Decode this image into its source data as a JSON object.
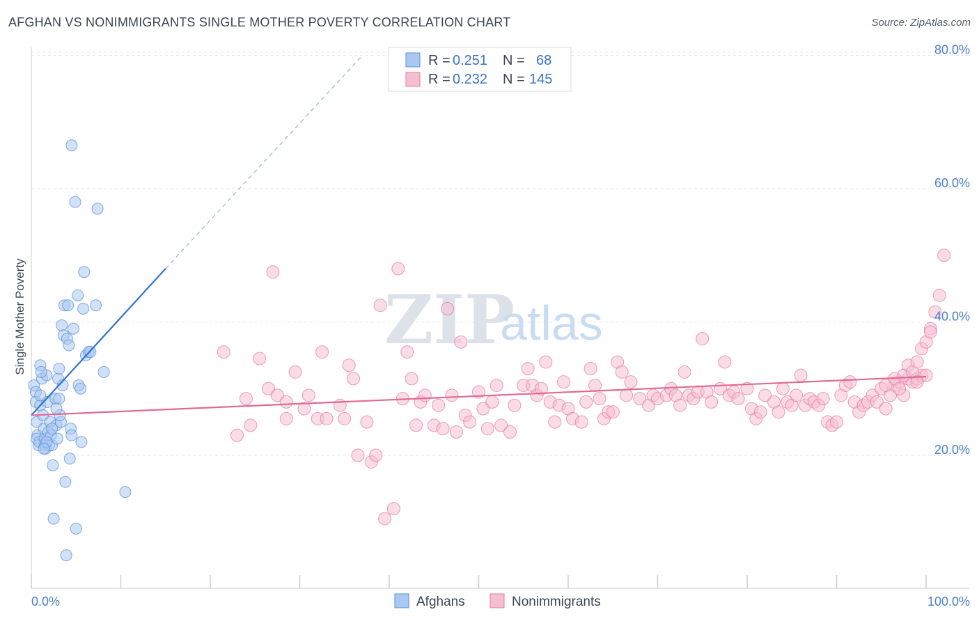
{
  "header": {
    "title": "AFGHAN VS NONIMMIGRANTS SINGLE MOTHER POVERTY CORRELATION CHART",
    "source": "Source: ZipAtlas.com"
  },
  "watermark": {
    "zip": "ZIP",
    "atlas": "atlas"
  },
  "stats_box": {
    "rows": [
      {
        "r_label": "R =",
        "r_value": "0.251",
        "n_label": "N =",
        "n_value": "68",
        "color": "#a9c9f2",
        "stroke": "#5b8fd6"
      },
      {
        "r_label": "R =",
        "r_value": "0.232",
        "n_label": "N =",
        "n_value": "145",
        "color": "#f6bfd1",
        "stroke": "#e57ba0"
      }
    ]
  },
  "legend": {
    "items": [
      {
        "label": "Afghans",
        "color": "#a9c9f2",
        "stroke": "#5b8fd6"
      },
      {
        "label": "Nonimmigrants",
        "color": "#f6bfd1",
        "stroke": "#e57ba0"
      }
    ]
  },
  "chart_data": {
    "type": "scatter",
    "title": "AFGHAN VS NONIMMIGRANTS SINGLE MOTHER POVERTY CORRELATION CHART",
    "xlabel": "",
    "ylabel": "Single Mother Poverty",
    "xlim": [
      0,
      100
    ],
    "ylim": [
      0,
      85
    ],
    "x_tick_labels": [
      "0.0%",
      "100.0%"
    ],
    "y_ticks": [
      20,
      40,
      60,
      80
    ],
    "y_tick_labels": [
      "20.0%",
      "40.0%",
      "60.0%",
      "80.0%"
    ],
    "grid": true,
    "legend_position": "bottom-center",
    "series": [
      {
        "name": "Afghans",
        "color": "#5b8fd6",
        "fill": "#a9c9f2",
        "trend": {
          "x": [
            0,
            15
          ],
          "y": [
            26.0,
            48.0
          ],
          "dashed_extension_to": [
            37,
            80
          ]
        },
        "points": [
          [
            0.3,
            30.5
          ],
          [
            0.5,
            29.5
          ],
          [
            0.5,
            28
          ],
          [
            0.6,
            25
          ],
          [
            0.7,
            23
          ],
          [
            0.6,
            22.5
          ],
          [
            0.8,
            21.5
          ],
          [
            0.9,
            22
          ],
          [
            1,
            27.5
          ],
          [
            1,
            33.5
          ],
          [
            1.2,
            31.5
          ],
          [
            1.3,
            26
          ],
          [
            1.4,
            24
          ],
          [
            1.5,
            22.5
          ],
          [
            1.5,
            21.5
          ],
          [
            1.6,
            21
          ],
          [
            1.7,
            32
          ],
          [
            1.8,
            28
          ],
          [
            1.9,
            23.5
          ],
          [
            2,
            21.5
          ],
          [
            2.1,
            25
          ],
          [
            2.2,
            23
          ],
          [
            2.3,
            21.5
          ],
          [
            2.4,
            18.5
          ],
          [
            2.5,
            10.5
          ],
          [
            2.7,
            28.5
          ],
          [
            2.8,
            24.5
          ],
          [
            2.9,
            22.5
          ],
          [
            3,
            31.5
          ],
          [
            3.1,
            33
          ],
          [
            3.1,
            28.5
          ],
          [
            3.3,
            25
          ],
          [
            3.4,
            39.5
          ],
          [
            3.5,
            30.5
          ],
          [
            3.6,
            38
          ],
          [
            3.7,
            42.5
          ],
          [
            3.8,
            16
          ],
          [
            3.9,
            5
          ],
          [
            4,
            37.5
          ],
          [
            4.1,
            42.5
          ],
          [
            4.2,
            36.5
          ],
          [
            4.3,
            19.5
          ],
          [
            4.4,
            24
          ],
          [
            4.5,
            23
          ],
          [
            4.5,
            66.5
          ],
          [
            4.7,
            39
          ],
          [
            4.9,
            58
          ],
          [
            5,
            9
          ],
          [
            5.2,
            44
          ],
          [
            5.3,
            30.5
          ],
          [
            5.5,
            30
          ],
          [
            5.6,
            22
          ],
          [
            5.8,
            42
          ],
          [
            5.9,
            47.5
          ],
          [
            6.1,
            35
          ],
          [
            6.4,
            35.5
          ],
          [
            6.6,
            35.5
          ],
          [
            7.2,
            42.5
          ],
          [
            7.4,
            57
          ],
          [
            8.1,
            32.5
          ],
          [
            10.5,
            14.5
          ],
          [
            1,
            29
          ],
          [
            1.7,
            22
          ],
          [
            2.3,
            24
          ],
          [
            3.2,
            26
          ],
          [
            1.4,
            21
          ],
          [
            2.8,
            27
          ],
          [
            1.1,
            32.5
          ]
        ]
      },
      {
        "name": "Nonimmigrants",
        "color": "#e57ba0",
        "fill": "#f6bfd1",
        "trend": {
          "x": [
            0,
            100
          ],
          "y": [
            26.0,
            31.8
          ]
        },
        "points": [
          [
            21.5,
            35.5
          ],
          [
            23,
            23
          ],
          [
            24,
            28.5
          ],
          [
            24.5,
            24.5
          ],
          [
            25.5,
            34.5
          ],
          [
            26.5,
            30
          ],
          [
            27,
            47.5
          ],
          [
            27.5,
            29
          ],
          [
            28.5,
            28
          ],
          [
            28.5,
            25.5
          ],
          [
            29.5,
            32.5
          ],
          [
            30.5,
            27
          ],
          [
            31,
            29
          ],
          [
            32,
            25.5
          ],
          [
            32.5,
            35.5
          ],
          [
            33,
            25.5
          ],
          [
            34.5,
            27.5
          ],
          [
            35,
            25.5
          ],
          [
            35.5,
            33.5
          ],
          [
            36,
            31.5
          ],
          [
            36.5,
            20
          ],
          [
            37.5,
            25
          ],
          [
            38,
            19
          ],
          [
            38.5,
            20
          ],
          [
            39,
            42.5
          ],
          [
            39.5,
            10.5
          ],
          [
            40.5,
            12
          ],
          [
            41,
            48
          ],
          [
            41.5,
            28.5
          ],
          [
            42,
            35.5
          ],
          [
            42.5,
            31.5
          ],
          [
            43,
            24.5
          ],
          [
            43.5,
            28
          ],
          [
            44,
            29
          ],
          [
            45,
            24.5
          ],
          [
            45.5,
            27.5
          ],
          [
            46,
            24
          ],
          [
            46.5,
            42
          ],
          [
            47,
            29
          ],
          [
            47.5,
            23.5
          ],
          [
            48,
            37
          ],
          [
            48.5,
            26
          ],
          [
            49,
            25
          ],
          [
            50,
            29.5
          ],
          [
            50.5,
            27
          ],
          [
            51,
            24
          ],
          [
            51.5,
            28
          ],
          [
            52,
            30.5
          ],
          [
            52.5,
            24.5
          ],
          [
            53.5,
            23.5
          ],
          [
            54,
            27.5
          ],
          [
            55,
            30.5
          ],
          [
            55.5,
            33
          ],
          [
            56,
            30.5
          ],
          [
            56.5,
            29
          ],
          [
            57,
            30
          ],
          [
            57.5,
            34
          ],
          [
            58,
            28
          ],
          [
            58.5,
            25
          ],
          [
            59,
            27.5
          ],
          [
            59.5,
            31
          ],
          [
            60,
            27
          ],
          [
            60.5,
            25.5
          ],
          [
            61.5,
            25
          ],
          [
            62,
            28
          ],
          [
            62.5,
            33
          ],
          [
            63,
            30.5
          ],
          [
            63.5,
            28.5
          ],
          [
            64,
            25.5
          ],
          [
            64.5,
            26.5
          ],
          [
            65,
            26.5
          ],
          [
            65.5,
            34
          ],
          [
            66,
            32.5
          ],
          [
            66.5,
            29
          ],
          [
            67,
            31
          ],
          [
            68,
            28.5
          ],
          [
            69,
            27.5
          ],
          [
            69.5,
            29
          ],
          [
            70,
            28.5
          ],
          [
            71,
            29
          ],
          [
            71.5,
            30
          ],
          [
            72,
            29
          ],
          [
            72.5,
            27.5
          ],
          [
            73,
            32.5
          ],
          [
            73.5,
            29
          ],
          [
            74,
            28.5
          ],
          [
            74.5,
            29.5
          ],
          [
            75,
            37.5
          ],
          [
            75.5,
            29.5
          ],
          [
            76,
            28
          ],
          [
            77,
            30
          ],
          [
            77.5,
            34
          ],
          [
            78,
            29
          ],
          [
            78.5,
            29.5
          ],
          [
            79,
            28.5
          ],
          [
            80,
            30
          ],
          [
            80.5,
            27
          ],
          [
            81,
            25.5
          ],
          [
            81.5,
            26.5
          ],
          [
            82,
            29
          ],
          [
            83,
            28
          ],
          [
            83.5,
            26.5
          ],
          [
            84,
            30
          ],
          [
            84.5,
            28
          ],
          [
            85,
            27.5
          ],
          [
            85.5,
            29
          ],
          [
            86,
            32
          ],
          [
            86.5,
            27.5
          ],
          [
            87,
            28.5
          ],
          [
            87.5,
            28
          ],
          [
            88,
            27.5
          ],
          [
            88.5,
            28.5
          ],
          [
            89,
            25
          ],
          [
            89.5,
            24.5
          ],
          [
            90,
            25
          ],
          [
            90.5,
            29
          ],
          [
            91,
            30.5
          ],
          [
            91.5,
            31
          ],
          [
            92,
            28
          ],
          [
            92.5,
            26.5
          ],
          [
            93,
            27.5
          ],
          [
            93.5,
            28
          ],
          [
            94,
            29
          ],
          [
            94.5,
            28
          ],
          [
            95,
            30
          ],
          [
            95.5,
            27
          ],
          [
            96,
            29
          ],
          [
            96.5,
            30.5
          ],
          [
            97,
            31
          ],
          [
            97.5,
            29
          ],
          [
            98,
            31.5
          ],
          [
            98.5,
            31
          ],
          [
            99,
            31.5
          ],
          [
            99.5,
            32
          ],
          [
            100,
            32
          ],
          [
            95.5,
            30.5
          ],
          [
            96.5,
            31.5
          ],
          [
            97.5,
            32
          ],
          [
            98,
            33.5
          ],
          [
            98.5,
            32.5
          ],
          [
            99,
            34
          ],
          [
            99.5,
            36
          ],
          [
            100,
            37
          ],
          [
            100.5,
            39
          ],
          [
            101,
            41.5
          ],
          [
            101.5,
            44
          ],
          [
            102,
            50
          ],
          [
            100.5,
            38.5
          ],
          [
            99,
            31
          ],
          [
            97,
            30
          ]
        ]
      }
    ]
  }
}
